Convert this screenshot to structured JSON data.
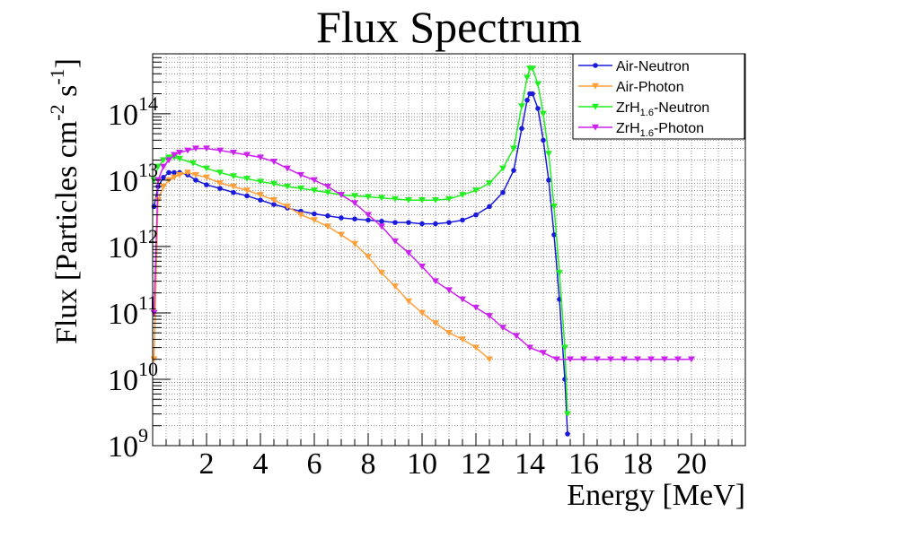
{
  "chart_data": {
    "type": "line",
    "title": "Flux Spectrum",
    "xlabel": "Energy [MeV]",
    "ylabel": {
      "main": "Flux [Particles cm",
      "sup1": "-2",
      "mid": " s",
      "sup2": "-1",
      "end": "]"
    },
    "xlim": [
      0,
      22
    ],
    "ylim": [
      1000000000.0,
      800000000000000.0
    ],
    "yscale": "log",
    "grid": true,
    "legend_position": "top-right",
    "x_ticks": [
      {
        "v": 2,
        "label": "2"
      },
      {
        "v": 4,
        "label": "4"
      },
      {
        "v": 6,
        "label": "6"
      },
      {
        "v": 8,
        "label": "8"
      },
      {
        "v": 10,
        "label": "10"
      },
      {
        "v": 12,
        "label": "12"
      },
      {
        "v": 14,
        "label": "14"
      },
      {
        "v": 16,
        "label": "16"
      },
      {
        "v": 18,
        "label": "18"
      },
      {
        "v": 20,
        "label": "20"
      }
    ],
    "y_ticks": [
      {
        "v": 1000000000.0,
        "base": "10",
        "exp": "9"
      },
      {
        "v": 10000000000.0,
        "base": "10",
        "exp": "10"
      },
      {
        "v": 100000000000.0,
        "base": "10",
        "exp": "11"
      },
      {
        "v": 1000000000000.0,
        "base": "10",
        "exp": "12"
      },
      {
        "v": 10000000000000.0,
        "base": "10",
        "exp": "13"
      },
      {
        "v": 100000000000000.0,
        "base": "10",
        "exp": "14"
      }
    ],
    "series": [
      {
        "name": "Air-Neutron",
        "legend": {
          "pre": "Air-Neutron",
          "sub": "",
          "post": ""
        },
        "color": "#1a1adb",
        "marker": "circle",
        "points": [
          [
            0.05,
            4000000000000.0
          ],
          [
            0.2,
            8000000000000.0
          ],
          [
            0.4,
            11000000000000.0
          ],
          [
            0.6,
            13000000000000.0
          ],
          [
            0.8,
            13000000000000.0
          ],
          [
            1.0,
            13000000000000.0
          ],
          [
            1.3,
            12000000000000.0
          ],
          [
            1.6,
            10000000000000.0
          ],
          [
            2.0,
            8500000000000.0
          ],
          [
            2.5,
            7500000000000.0
          ],
          [
            3.0,
            6500000000000.0
          ],
          [
            3.5,
            5800000000000.0
          ],
          [
            4.0,
            5000000000000.0
          ],
          [
            4.5,
            4300000000000.0
          ],
          [
            5.0,
            3800000000000.0
          ],
          [
            5.5,
            3400000000000.0
          ],
          [
            6.0,
            3100000000000.0
          ],
          [
            6.5,
            2900000000000.0
          ],
          [
            7.0,
            2700000000000.0
          ],
          [
            7.5,
            2600000000000.0
          ],
          [
            8.0,
            2500000000000.0
          ],
          [
            8.5,
            2400000000000.0
          ],
          [
            9.0,
            2300000000000.0
          ],
          [
            9.5,
            2300000000000.0
          ],
          [
            10.0,
            2200000000000.0
          ],
          [
            10.5,
            2200000000000.0
          ],
          [
            11.0,
            2300000000000.0
          ],
          [
            11.5,
            2500000000000.0
          ],
          [
            12.0,
            3000000000000.0
          ],
          [
            12.5,
            4000000000000.0
          ],
          [
            13.0,
            6500000000000.0
          ],
          [
            13.4,
            14000000000000.0
          ],
          [
            13.7,
            60000000000000.0
          ],
          [
            13.9,
            160000000000000.0
          ],
          [
            14.0,
            200000000000000.0
          ],
          [
            14.1,
            200000000000000.0
          ],
          [
            14.3,
            120000000000000.0
          ],
          [
            14.5,
            40000000000000.0
          ],
          [
            14.7,
            10000000000000.0
          ],
          [
            14.9,
            1500000000000.0
          ],
          [
            15.1,
            160000000000.0
          ],
          [
            15.3,
            10000000000.0
          ],
          [
            15.4,
            1500000000.0
          ]
        ]
      },
      {
        "name": "Air-Photon",
        "legend": {
          "pre": "Air-Photon",
          "sub": "",
          "post": ""
        },
        "color": "#ff9f3a",
        "marker": "triangle-down",
        "points": [
          [
            0.05,
            20000000000.0
          ],
          [
            0.2,
            5000000000000.0
          ],
          [
            0.4,
            8000000000000.0
          ],
          [
            0.6,
            10000000000000.0
          ],
          [
            0.8,
            11000000000000.0
          ],
          [
            1.0,
            12000000000000.0
          ],
          [
            1.3,
            13000000000000.0
          ],
          [
            1.6,
            12000000000000.0
          ],
          [
            2.0,
            11000000000000.0
          ],
          [
            2.5,
            9000000000000.0
          ],
          [
            3.0,
            8000000000000.0
          ],
          [
            3.5,
            7000000000000.0
          ],
          [
            4.0,
            6000000000000.0
          ],
          [
            4.5,
            5000000000000.0
          ],
          [
            5.0,
            4000000000000.0
          ],
          [
            5.5,
            3000000000000.0
          ],
          [
            6.0,
            2500000000000.0
          ],
          [
            6.5,
            2000000000000.0
          ],
          [
            7.0,
            1500000000000.0
          ],
          [
            7.5,
            1100000000000.0
          ],
          [
            8.0,
            700000000000.0
          ],
          [
            8.5,
            400000000000.0
          ],
          [
            9.0,
            250000000000.0
          ],
          [
            9.5,
            150000000000.0
          ],
          [
            10.0,
            100000000000.0
          ],
          [
            10.5,
            70000000000.0
          ],
          [
            11.0,
            50000000000.0
          ],
          [
            11.5,
            40000000000.0
          ],
          [
            12.0,
            30000000000.0
          ],
          [
            12.5,
            20000000000.0
          ]
        ]
      },
      {
        "name": "ZrH1.6-Neutron",
        "legend": {
          "pre": "ZrH",
          "sub": "1.6",
          "post": "-Neutron"
        },
        "color": "#22ee22",
        "marker": "triangle-down",
        "points": [
          [
            0.05,
            10000000000000.0
          ],
          [
            0.2,
            16000000000000.0
          ],
          [
            0.4,
            20000000000000.0
          ],
          [
            0.6,
            22000000000000.0
          ],
          [
            0.8,
            22000000000000.0
          ],
          [
            1.0,
            21000000000000.0
          ],
          [
            1.5,
            18000000000000.0
          ],
          [
            2.0,
            15000000000000.0
          ],
          [
            2.5,
            13000000000000.0
          ],
          [
            3.0,
            11500000000000.0
          ],
          [
            3.5,
            10500000000000.0
          ],
          [
            4.0,
            9500000000000.0
          ],
          [
            4.5,
            8800000000000.0
          ],
          [
            5.0,
            8000000000000.0
          ],
          [
            5.5,
            7500000000000.0
          ],
          [
            6.0,
            7000000000000.0
          ],
          [
            6.5,
            6500000000000.0
          ],
          [
            7.0,
            6000000000000.0
          ],
          [
            7.5,
            5800000000000.0
          ],
          [
            8.0,
            5600000000000.0
          ],
          [
            8.5,
            5400000000000.0
          ],
          [
            9.0,
            5200000000000.0
          ],
          [
            9.5,
            5000000000000.0
          ],
          [
            10.0,
            5000000000000.0
          ],
          [
            10.5,
            5000000000000.0
          ],
          [
            11.0,
            5200000000000.0
          ],
          [
            11.5,
            6000000000000.0
          ],
          [
            12.0,
            7000000000000.0
          ],
          [
            12.5,
            9000000000000.0
          ],
          [
            13.0,
            15000000000000.0
          ],
          [
            13.4,
            30000000000000.0
          ],
          [
            13.7,
            130000000000000.0
          ],
          [
            13.9,
            350000000000000.0
          ],
          [
            14.0,
            480000000000000.0
          ],
          [
            14.1,
            480000000000000.0
          ],
          [
            14.3,
            280000000000000.0
          ],
          [
            14.5,
            100000000000000.0
          ],
          [
            14.7,
            25000000000000.0
          ],
          [
            14.9,
            4000000000000.0
          ],
          [
            15.1,
            400000000000.0
          ],
          [
            15.3,
            30000000000.0
          ],
          [
            15.4,
            3000000000.0
          ]
        ]
      },
      {
        "name": "ZrH1.6-Photon",
        "legend": {
          "pre": "ZrH",
          "sub": "1.6",
          "post": "-Photon"
        },
        "color": "#cc22ee",
        "marker": "triangle-down",
        "points": [
          [
            0.05,
            100000000000.0
          ],
          [
            0.2,
            10000000000000.0
          ],
          [
            0.4,
            16000000000000.0
          ],
          [
            0.6,
            20000000000000.0
          ],
          [
            0.8,
            24000000000000.0
          ],
          [
            1.0,
            26000000000000.0
          ],
          [
            1.3,
            28000000000000.0
          ],
          [
            1.6,
            30000000000000.0
          ],
          [
            2.0,
            30000000000000.0
          ],
          [
            2.5,
            28000000000000.0
          ],
          [
            3.0,
            26000000000000.0
          ],
          [
            3.5,
            24000000000000.0
          ],
          [
            4.0,
            22000000000000.0
          ],
          [
            4.5,
            19000000000000.0
          ],
          [
            5.0,
            15000000000000.0
          ],
          [
            5.5,
            12000000000000.0
          ],
          [
            6.0,
            10000000000000.0
          ],
          [
            6.5,
            8000000000000.0
          ],
          [
            7.0,
            6000000000000.0
          ],
          [
            7.5,
            4500000000000.0
          ],
          [
            8.0,
            3000000000000.0
          ],
          [
            8.5,
            2000000000000.0
          ],
          [
            9.0,
            1200000000000.0
          ],
          [
            9.5,
            800000000000.0
          ],
          [
            10.0,
            500000000000.0
          ],
          [
            10.5,
            300000000000.0
          ],
          [
            11.0,
            220000000000.0
          ],
          [
            11.5,
            160000000000.0
          ],
          [
            12.0,
            120000000000.0
          ],
          [
            12.5,
            90000000000.0
          ],
          [
            13.0,
            60000000000.0
          ],
          [
            13.5,
            45000000000.0
          ],
          [
            14.0,
            30000000000.0
          ],
          [
            14.5,
            25000000000.0
          ],
          [
            15.0,
            20000000000.0
          ],
          [
            15.5,
            20000000000.0
          ],
          [
            16.0,
            20000000000.0
          ],
          [
            16.5,
            20000000000.0
          ],
          [
            17.0,
            20000000000.0
          ],
          [
            17.5,
            20000000000.0
          ],
          [
            18.0,
            20000000000.0
          ],
          [
            18.5,
            20000000000.0
          ],
          [
            19.0,
            20000000000.0
          ],
          [
            19.5,
            20000000000.0
          ],
          [
            20.0,
            20000000000.0
          ]
        ]
      }
    ]
  }
}
